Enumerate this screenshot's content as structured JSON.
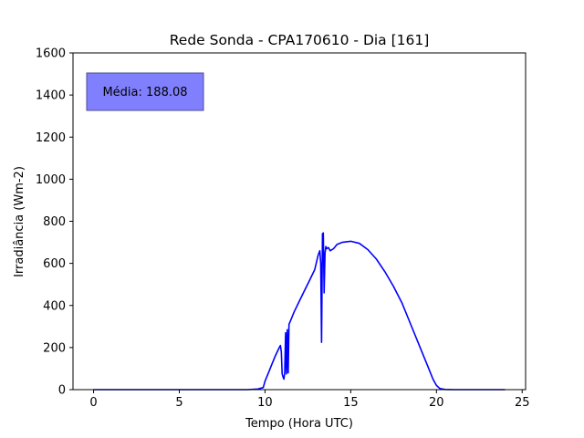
{
  "chart_data": {
    "type": "line",
    "title": "Rede Sonda - CPA170610 - Dia [161]",
    "xlabel": "Tempo (Hora UTC)",
    "ylabel": "Irradiância (Wm-2)",
    "xlim": [
      -1.2,
      25.2
    ],
    "ylim": [
      0,
      1600
    ],
    "xticks": [
      0,
      5,
      10,
      15,
      20,
      25
    ],
    "yticks": [
      0,
      200,
      400,
      600,
      800,
      1000,
      1200,
      1400,
      1600
    ],
    "grid": false,
    "line_color": "#0000ff",
    "annotation": {
      "text": "Média: 188.08",
      "background": "#8080ff",
      "border": "#4d4d99"
    },
    "series": [
      {
        "x": [
          0,
          5,
          9,
          9.6,
          9.9,
          10.0,
          10.2,
          10.4,
          10.6,
          10.8,
          10.9,
          10.95,
          11.0,
          11.05,
          11.1,
          11.15,
          11.2,
          11.25,
          11.3,
          11.35,
          11.4,
          11.5,
          11.7,
          12.0,
          12.3,
          12.6,
          12.9,
          13.1,
          13.2,
          13.25,
          13.3,
          13.35,
          13.4,
          13.45,
          13.5,
          13.55,
          13.6,
          13.7,
          13.8,
          14.0,
          14.2,
          14.5,
          15.0,
          15.5,
          16.0,
          16.5,
          17.0,
          17.5,
          18.0,
          18.5,
          19.0,
          19.5,
          19.8,
          20.0,
          20.2,
          20.5,
          21,
          22,
          24
        ],
        "y": [
          0,
          0,
          0,
          3,
          10,
          40,
          80,
          120,
          160,
          195,
          210,
          180,
          75,
          60,
          50,
          80,
          270,
          75,
          285,
          80,
          310,
          330,
          370,
          420,
          470,
          520,
          570,
          640,
          660,
          600,
          225,
          740,
          745,
          460,
          650,
          680,
          670,
          675,
          660,
          670,
          690,
          700,
          705,
          695,
          665,
          620,
          560,
          490,
          410,
          310,
          210,
          110,
          50,
          20,
          5,
          1,
          0,
          0,
          0
        ]
      }
    ]
  }
}
